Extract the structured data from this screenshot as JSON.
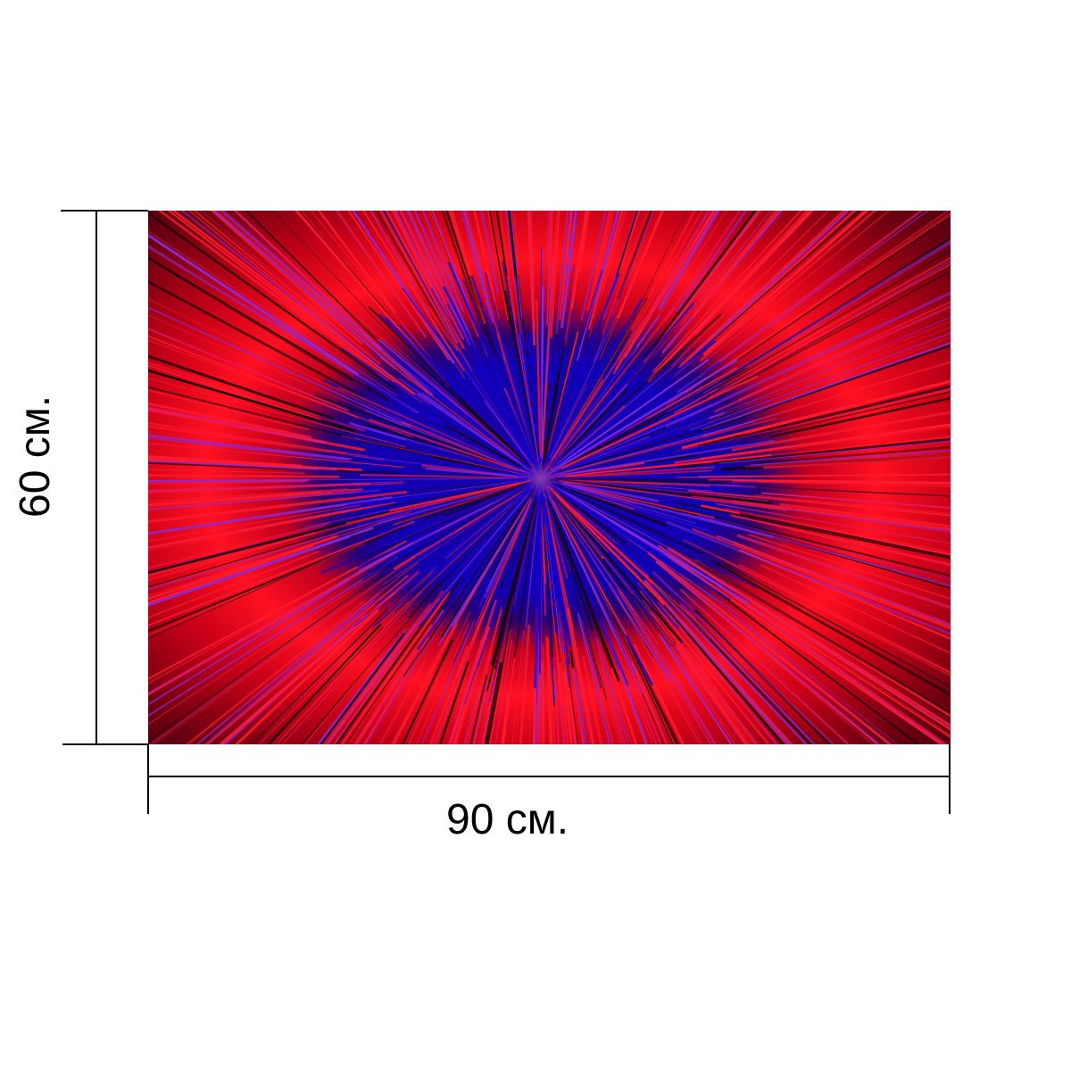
{
  "dimensions": {
    "width_label": "90 см.",
    "height_label": "60 см."
  },
  "artwork": {
    "colors": {
      "ray_red": "#ff1a2e",
      "ray_magenta": "#e01a6a",
      "ray_violet": "#8a2ae0",
      "core_blue": "#1400c8",
      "center_glow": "#8a3ab0",
      "dark": "#14000a"
    }
  },
  "colors": {
    "dimension_line": "#000000",
    "background": "#ffffff"
  }
}
